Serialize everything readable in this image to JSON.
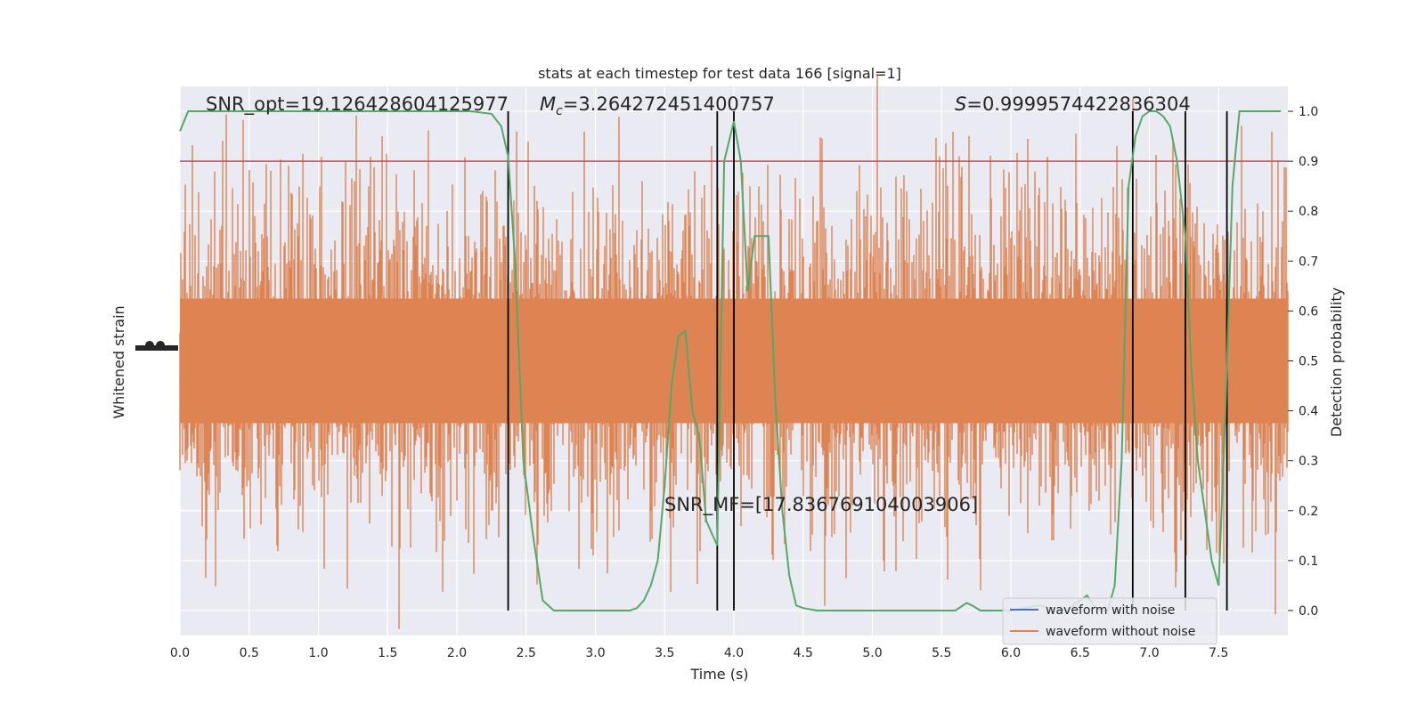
{
  "chart_data": {
    "type": "line",
    "title": "stats at each timestep for test data 166 [signal=1]",
    "xlabel": "Time (s)",
    "ylabel_left": "Whitened strain",
    "ylabel_right": "Detection probability",
    "xlim": [
      0.0,
      8.0
    ],
    "ylim_right": [
      -0.05,
      1.05
    ],
    "x_ticks": [
      "0.0",
      "0.5",
      "1.0",
      "1.5",
      "2.0",
      "2.5",
      "3.0",
      "3.5",
      "4.0",
      "4.5",
      "5.0",
      "5.5",
      "6.0",
      "6.5",
      "7.0",
      "7.5"
    ],
    "y_ticks_right": [
      "0.0",
      "0.1",
      "0.2",
      "0.3",
      "0.4",
      "0.5",
      "0.6",
      "0.7",
      "0.8",
      "0.9",
      "1.0"
    ],
    "grid": true,
    "annotations": {
      "snr_opt": "SNR_opt=19.126428604125977",
      "mc_symbol": "M",
      "mc_sub": "c",
      "mc_value": "=3.264272451400757",
      "s_symbol": "S",
      "s_value": "=0.9999574422836304",
      "snr_mf": "SNR_MF=[17.836769104003906]"
    },
    "threshold": 0.9,
    "vertical_lines_x": [
      2.37,
      3.88,
      4.0,
      6.88,
      7.26,
      7.56
    ],
    "series": [
      {
        "name": "waveform with noise",
        "color": "#4c72b0"
      },
      {
        "name": "waveform without noise",
        "color": "#dd8452"
      }
    ],
    "probability_curve": {
      "color": "#55a868",
      "x": [
        0.0,
        0.06,
        0.12,
        0.3,
        0.6,
        0.9,
        1.2,
        1.5,
        1.8,
        2.1,
        2.25,
        2.32,
        2.37,
        2.42,
        2.48,
        2.55,
        2.62,
        2.7,
        2.8,
        3.0,
        3.2,
        3.25,
        3.3,
        3.35,
        3.4,
        3.45,
        3.5,
        3.55,
        3.6,
        3.65,
        3.7,
        3.75,
        3.8,
        3.88,
        3.93,
        4.0,
        4.05,
        4.1,
        4.15,
        4.2,
        4.25,
        4.3,
        4.35,
        4.4,
        4.45,
        4.5,
        4.6,
        4.8,
        5.0,
        5.2,
        5.4,
        5.6,
        5.68,
        5.72,
        5.78,
        5.85,
        6.0,
        6.2,
        6.4,
        6.55,
        6.6,
        6.65,
        6.7,
        6.75,
        6.8,
        6.85,
        6.9,
        6.95,
        7.0,
        7.05,
        7.1,
        7.15,
        7.2,
        7.26,
        7.3,
        7.35,
        7.4,
        7.45,
        7.5,
        7.55,
        7.6,
        7.65,
        7.7,
        7.8,
        7.95
      ],
      "y": [
        0.96,
        1.0,
        1.0,
        1.0,
        1.0,
        1.0,
        1.0,
        1.0,
        1.0,
        1.0,
        0.995,
        0.97,
        0.91,
        0.7,
        0.3,
        0.15,
        0.02,
        0.0,
        0.0,
        0.0,
        0.0,
        0.0,
        0.005,
        0.02,
        0.05,
        0.1,
        0.25,
        0.45,
        0.55,
        0.56,
        0.4,
        0.35,
        0.18,
        0.13,
        0.9,
        0.98,
        0.9,
        0.64,
        0.75,
        0.75,
        0.75,
        0.42,
        0.2,
        0.07,
        0.01,
        0.005,
        0.0,
        0.0,
        0.0,
        0.0,
        0.0,
        0.0,
        0.015,
        0.01,
        0.0,
        0.0,
        0.0,
        0.01,
        0.0,
        0.03,
        0.01,
        0.0,
        0.0,
        0.05,
        0.3,
        0.85,
        0.95,
        0.99,
        1.0,
        1.0,
        0.99,
        0.97,
        0.9,
        0.75,
        0.5,
        0.3,
        0.2,
        0.1,
        0.05,
        0.4,
        0.85,
        1.0,
        1.0,
        1.0,
        1.0
      ]
    }
  }
}
